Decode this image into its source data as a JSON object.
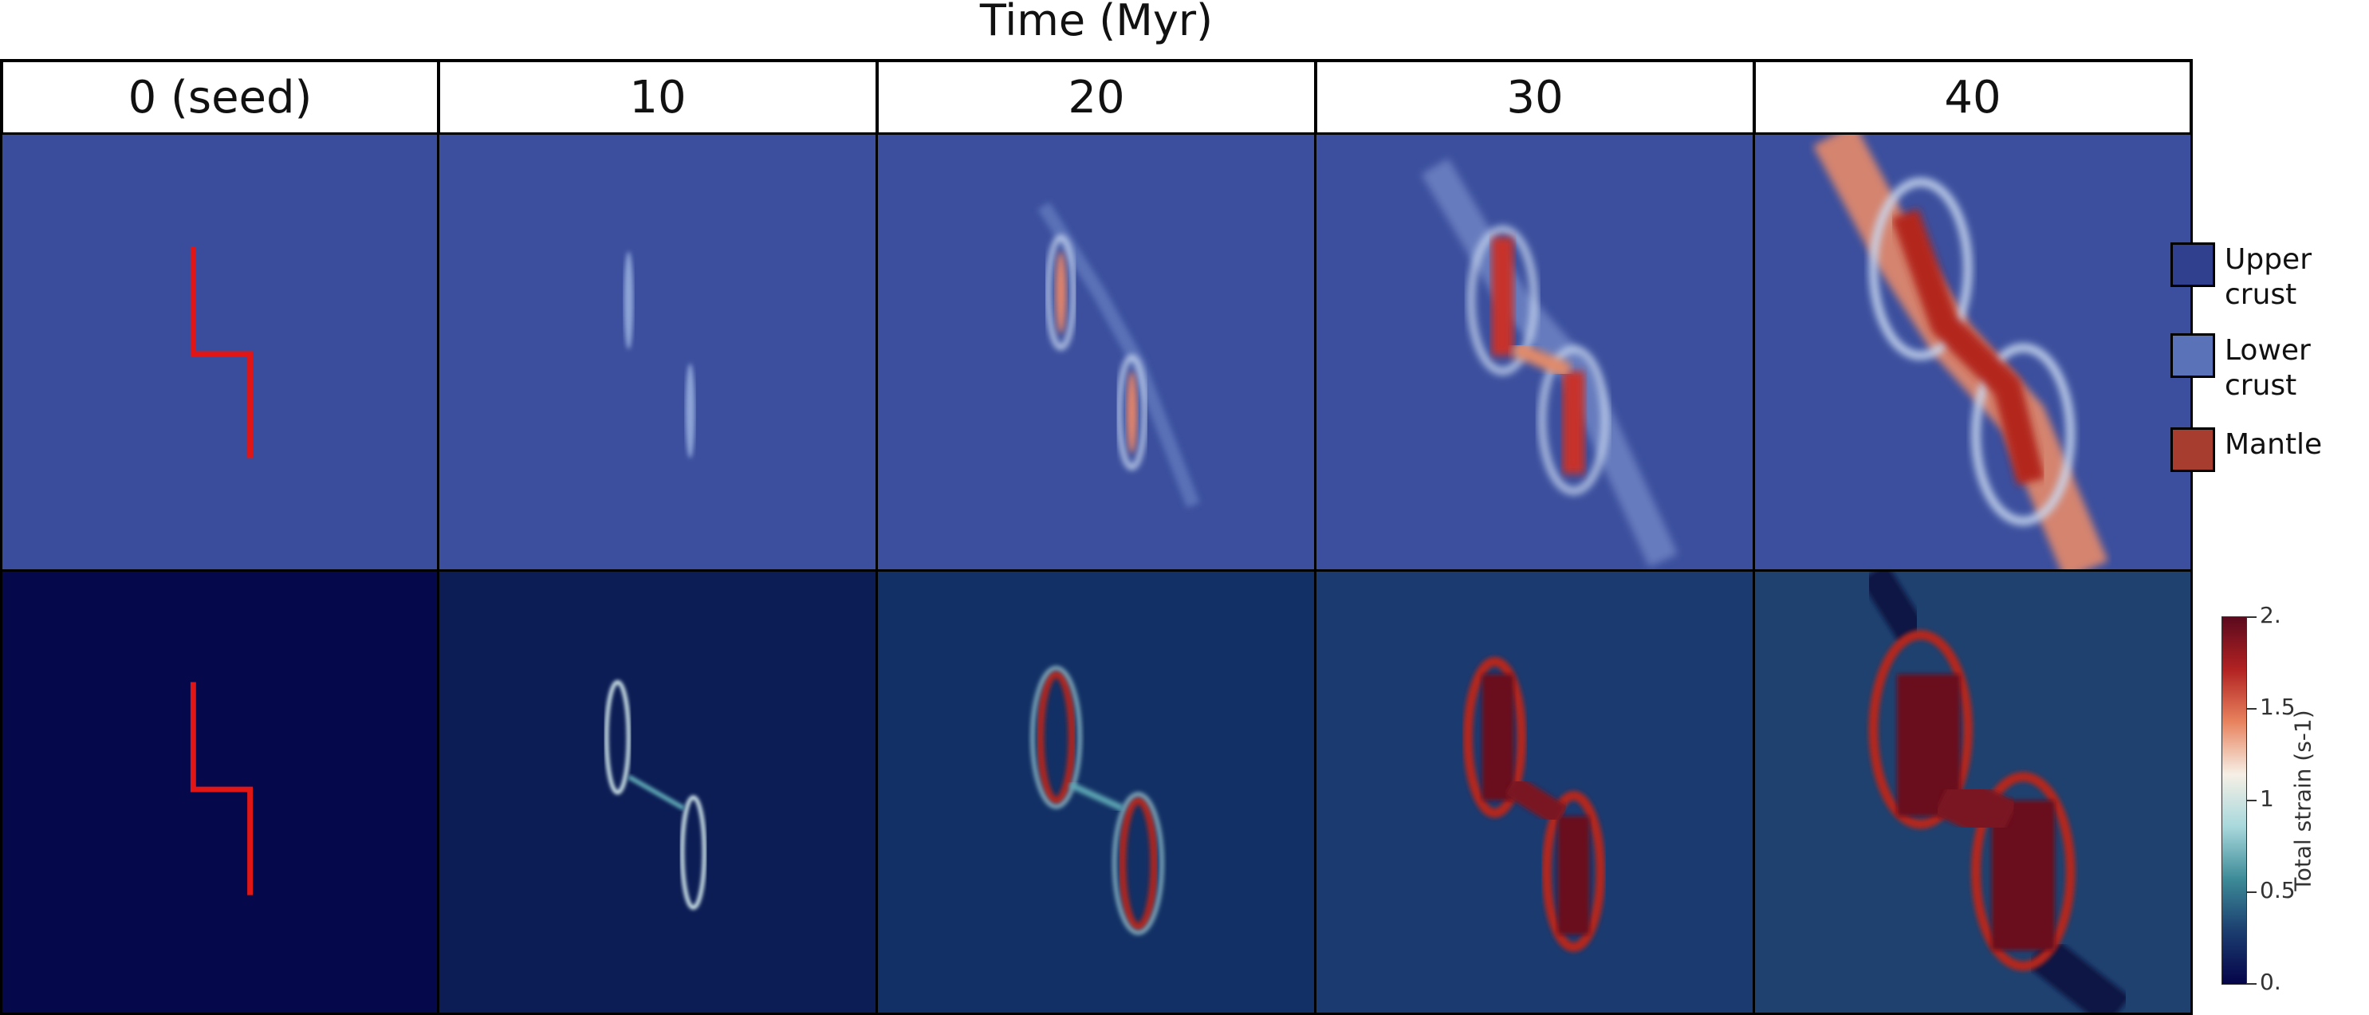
{
  "title": "Time (Myr)",
  "columns": [
    "0 (seed)",
    "10",
    "20",
    "30",
    "40"
  ],
  "legend": [
    {
      "label_lines": [
        "Upper",
        "crust"
      ],
      "color": "#313f8f"
    },
    {
      "label_lines": [
        "Lower",
        "crust"
      ],
      "color": "#5a72b8"
    },
    {
      "label_lines": [
        "Mantle"
      ],
      "color": "#a63d2f"
    }
  ],
  "colorbar": {
    "title": "Total strain (s-1)",
    "ticks": [
      "2.",
      "1.5",
      "1",
      "0.5",
      "0."
    ],
    "colors": [
      "#5b0a1e",
      "#b22222",
      "#e8835e",
      "#f6efe6",
      "#a8d8dc",
      "#3d8b98",
      "#1b3d6f",
      "#05044a"
    ]
  },
  "colors": {
    "composition_background": "#3a4d9c",
    "strain_background": "#0a1a52",
    "seed_line": "#e01616",
    "hot": "#b3261e"
  }
}
